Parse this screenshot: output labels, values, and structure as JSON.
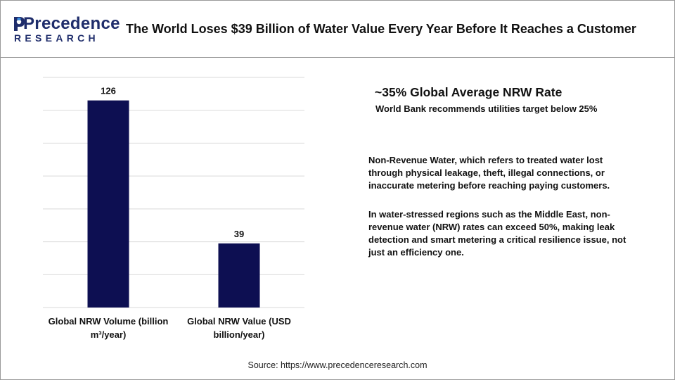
{
  "logo": {
    "line1": "Precedence",
    "line2": "RESEARCH"
  },
  "title": "The World  Loses $39 Billion of Water Value Every Year Before It Reaches a Customer",
  "colors": {
    "bar": "#0d0f52",
    "brand": "#1f2d6b",
    "grid": "#d9d9d9"
  },
  "chart_data": {
    "type": "bar",
    "categories": [
      [
        "Global NRW Volume (billion",
        "m³/year)"
      ],
      [
        "Global NRW Value (USD",
        "billion/year)"
      ]
    ],
    "values": [
      126,
      39
    ],
    "data_labels": [
      "126",
      "39"
    ],
    "ylim": [
      0,
      140
    ],
    "y_step": 20,
    "grid": true,
    "legend": "none"
  },
  "info": {
    "headline": "~35% Global  Average NRW Rate",
    "subline": "World Bank recommends utilities target below 25%",
    "para1": "Non-Revenue Water, which refers to treated water lost through physical leakage, theft, illegal connections, or inaccurate metering before reaching paying customers.",
    "para2": "In water-stressed regions such as the Middle East, non-revenue water (NRW) rates can exceed 50%, making leak detection and smart metering a critical resilience issue, not just an efficiency one."
  },
  "source": "Source: https://www.precedenceresearch.com"
}
